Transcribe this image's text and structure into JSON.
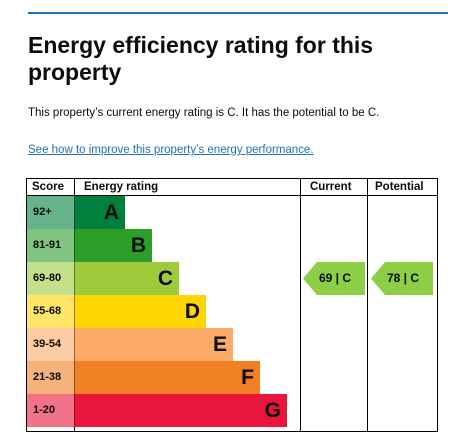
{
  "page": {
    "title": "Energy efficiency rating for this property",
    "summary": "This property’s current energy rating is C. It has the potential to be C.",
    "improve_link": "See how to improve this property’s energy performance."
  },
  "table": {
    "headers": {
      "score": "Score",
      "energy_rating": "Energy rating",
      "current": "Current",
      "potential": "Potential"
    },
    "bands": [
      {
        "score": "92+",
        "letter": "A",
        "color": "#007f3d"
      },
      {
        "score": "81-91",
        "letter": "B",
        "color": "#2c9f29"
      },
      {
        "score": "69-80",
        "letter": "C",
        "color": "#9dcb3c"
      },
      {
        "score": "55-68",
        "letter": "D",
        "color": "#ffd500"
      },
      {
        "score": "39-54",
        "letter": "E",
        "color": "#fcaa65"
      },
      {
        "score": "21-38",
        "letter": "F",
        "color": "#ef8023"
      },
      {
        "score": "1-20",
        "letter": "G",
        "color": "#e9153b"
      }
    ],
    "current": {
      "score": "69",
      "letter": "C",
      "label": "69 | C",
      "color": "#8cce46"
    },
    "potential": {
      "score": "78",
      "letter": "C",
      "label": "78 | C",
      "color": "#8cce46"
    }
  }
}
